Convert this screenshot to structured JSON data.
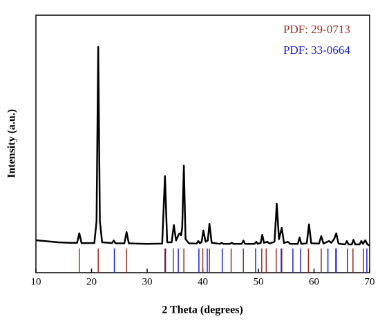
{
  "chart_data": {
    "type": "line",
    "xlabel": "2 Theta (degrees)",
    "ylabel": "Intensity (a.u.)",
    "xlim": [
      10,
      70
    ],
    "xticks": [
      10,
      20,
      30,
      40,
      50,
      60,
      70
    ],
    "ylim": [
      0,
      100
    ],
    "legend": "upper right",
    "series": [
      {
        "style": "line",
        "color": "#000000",
        "x": [
          10,
          12,
          14,
          16,
          17.4,
          17.8,
          18.2,
          20.5,
          20.9,
          21.2,
          21.5,
          21.9,
          23.7,
          24.0,
          24.3,
          25.9,
          26.3,
          26.7,
          28,
          30,
          32.7,
          33.2,
          33.6,
          34.4,
          34.8,
          35.2,
          35.7,
          35.9,
          36.1,
          36.3,
          36.6,
          36.9,
          37.5,
          38.9,
          39.2,
          39.5,
          39.8,
          40.1,
          40.5,
          40.9,
          41.2,
          41.6,
          43.1,
          43.4,
          43.7,
          44.9,
          45.2,
          45.5,
          47,
          47.3,
          47.6,
          49.3,
          49.6,
          49.9,
          50.4,
          50.7,
          51.0,
          51.6,
          52,
          52.9,
          53.3,
          53.7,
          54.2,
          54.6,
          55.3,
          55.7,
          57.1,
          57.4,
          57.7,
          58.7,
          59.1,
          59.5,
          60.9,
          61.3,
          61.7,
          62.7,
          63.1,
          63.6,
          64.0,
          64.4,
          65.6,
          65.9,
          66.2,
          66.8,
          67.1,
          67.4,
          68.2,
          68.5,
          68.8,
          69.2,
          69.6,
          70
        ],
        "values": [
          12.6,
          12.2,
          11.8,
          11.6,
          11.6,
          15.3,
          11.5,
          11.5,
          20,
          87.7,
          20,
          11.8,
          11.5,
          12.5,
          11.4,
          11.4,
          15.8,
          11.4,
          11.3,
          11.2,
          11.3,
          37.5,
          11.8,
          11.8,
          18.5,
          12.5,
          15,
          15.3,
          14.5,
          17.4,
          41.6,
          13,
          11.4,
          11.3,
          12.3,
          11.4,
          12,
          16.4,
          12,
          12.5,
          19,
          11.6,
          11.2,
          11.6,
          11.2,
          11.2,
          11.6,
          11.2,
          11.2,
          12.5,
          11.2,
          11.2,
          12,
          11.2,
          11.5,
          14.7,
          11.6,
          12,
          11.3,
          12,
          26.8,
          13,
          17.4,
          11.5,
          12,
          11.2,
          11.2,
          13.7,
          11.2,
          11.4,
          18.8,
          11.4,
          11.3,
          14.2,
          11.3,
          12.3,
          11.6,
          13,
          15.3,
          11.3,
          11,
          12.3,
          11,
          11,
          12.8,
          11,
          11,
          12.3,
          11.2,
          12.6,
          11,
          10.5
        ]
      },
      {
        "style": "stick",
        "name": "PDF: 29-0713",
        "color": "#9b2d1f",
        "x": [
          17.8,
          21.2,
          26.3,
          33.2,
          34.7,
          36.6,
          40.0,
          41.2,
          45.1,
          47.3,
          50.6,
          51.4,
          53.2,
          54.2,
          59.0,
          61.3,
          63.9,
          67.0,
          68.9
        ],
        "values": [
          9.4,
          9.4,
          9.4,
          9.4,
          9.4,
          9.4,
          9.4,
          9.4,
          9.4,
          9.4,
          9.4,
          9.4,
          9.4,
          9.4,
          9.4,
          9.4,
          9.4,
          9.4,
          9.4
        ]
      },
      {
        "style": "stick",
        "name": "PDF: 33-0664",
        "color": "#1f1fd6",
        "x": [
          24.1,
          33.3,
          35.6,
          39.3,
          40.8,
          43.5,
          49.5,
          54.1,
          56.2,
          57.6,
          62.5,
          64.0,
          66.0,
          69.5
        ],
        "values": [
          9.4,
          9.4,
          9.4,
          9.4,
          9.4,
          9.4,
          9.4,
          9.4,
          9.4,
          9.4,
          9.4,
          9.4,
          9.4,
          9.4
        ]
      }
    ]
  }
}
